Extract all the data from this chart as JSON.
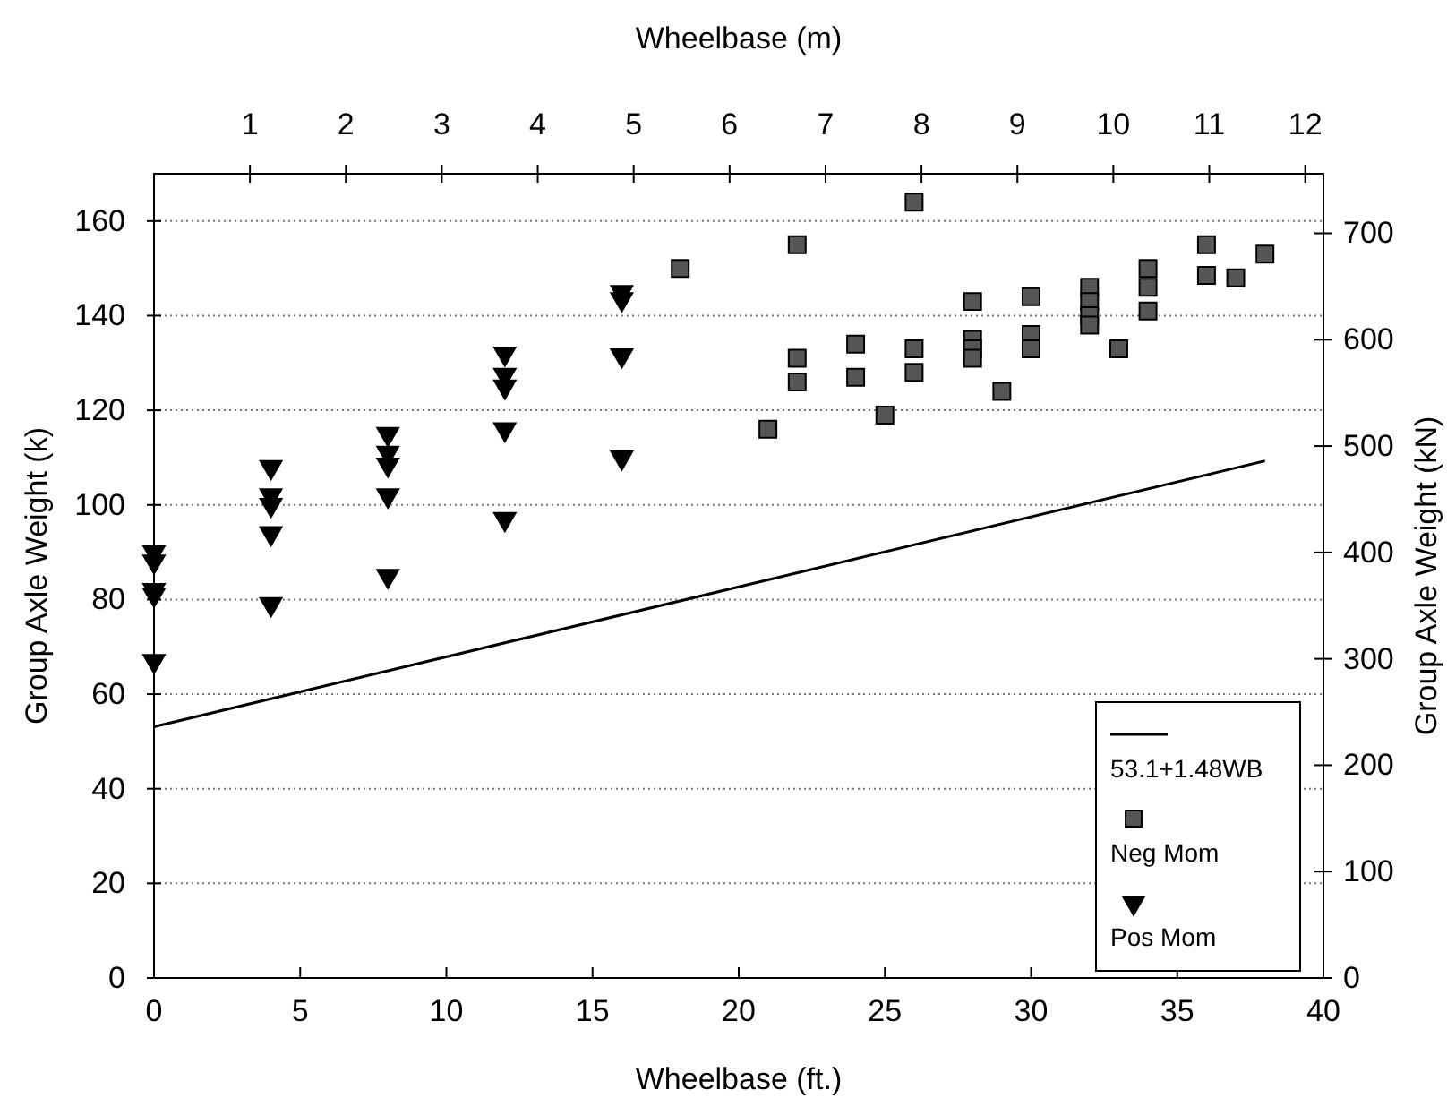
{
  "chart_data": {
    "type": "scatter",
    "xlabel": "Wheelbase  (ft.)",
    "ylabel": "Group Axle Weight  (k)",
    "y2label": "Group Axle Weight  (kN)",
    "x2label": "Wheelbase  (m)",
    "xlim": [
      0,
      40
    ],
    "xticks": [
      0,
      5,
      10,
      15,
      20,
      25,
      30,
      35,
      40
    ],
    "ylim": [
      0,
      170
    ],
    "yticks": [
      0,
      20,
      40,
      60,
      80,
      100,
      120,
      140,
      160
    ],
    "y2lim": [
      0,
      756
    ],
    "y2ticks": [
      0,
      100,
      200,
      300,
      400,
      500,
      600,
      700
    ],
    "x2lim": [
      0,
      12.19
    ],
    "x2ticks": [
      1,
      2,
      3,
      4,
      5,
      6,
      7,
      8,
      9,
      10,
      11,
      12
    ],
    "grid": "y",
    "legend": "bottom right",
    "series": [
      {
        "name": "53.1+1.48WB",
        "type": "line",
        "line_style": "solid",
        "color": "#000000",
        "x": [
          0,
          38
        ],
        "values": [
          53.1,
          109.3
        ]
      },
      {
        "name": "Neg Mom",
        "marker": "square",
        "color": "#555555",
        "x": [
          18,
          22,
          26,
          21,
          22,
          22,
          24,
          24,
          25,
          26,
          26,
          28,
          28,
          28,
          28,
          29,
          30,
          30,
          30,
          32,
          32,
          32,
          32,
          33,
          34,
          34,
          34,
          36,
          36,
          37,
          38
        ],
        "values": [
          150,
          155,
          164,
          116,
          131,
          126,
          134,
          127,
          119,
          133,
          128,
          143,
          135,
          133,
          131,
          124,
          144,
          136,
          133,
          146,
          143,
          140,
          138,
          133,
          150,
          146,
          141,
          155,
          148.5,
          148,
          153
        ]
      },
      {
        "name": "Pos Mom",
        "marker": "triangle",
        "color": "#000000",
        "x": [
          0,
          0,
          0,
          0,
          0,
          4,
          4,
          4,
          4,
          4,
          8,
          8,
          8,
          8,
          8,
          12,
          12,
          12,
          12,
          12,
          16,
          16,
          16,
          16
        ],
        "values": [
          90,
          88,
          82,
          81,
          67,
          108,
          102,
          100,
          94,
          79,
          115,
          111,
          108.5,
          102,
          85,
          132,
          127.5,
          125,
          116,
          97,
          145,
          143.5,
          131.6,
          110
        ]
      }
    ]
  }
}
